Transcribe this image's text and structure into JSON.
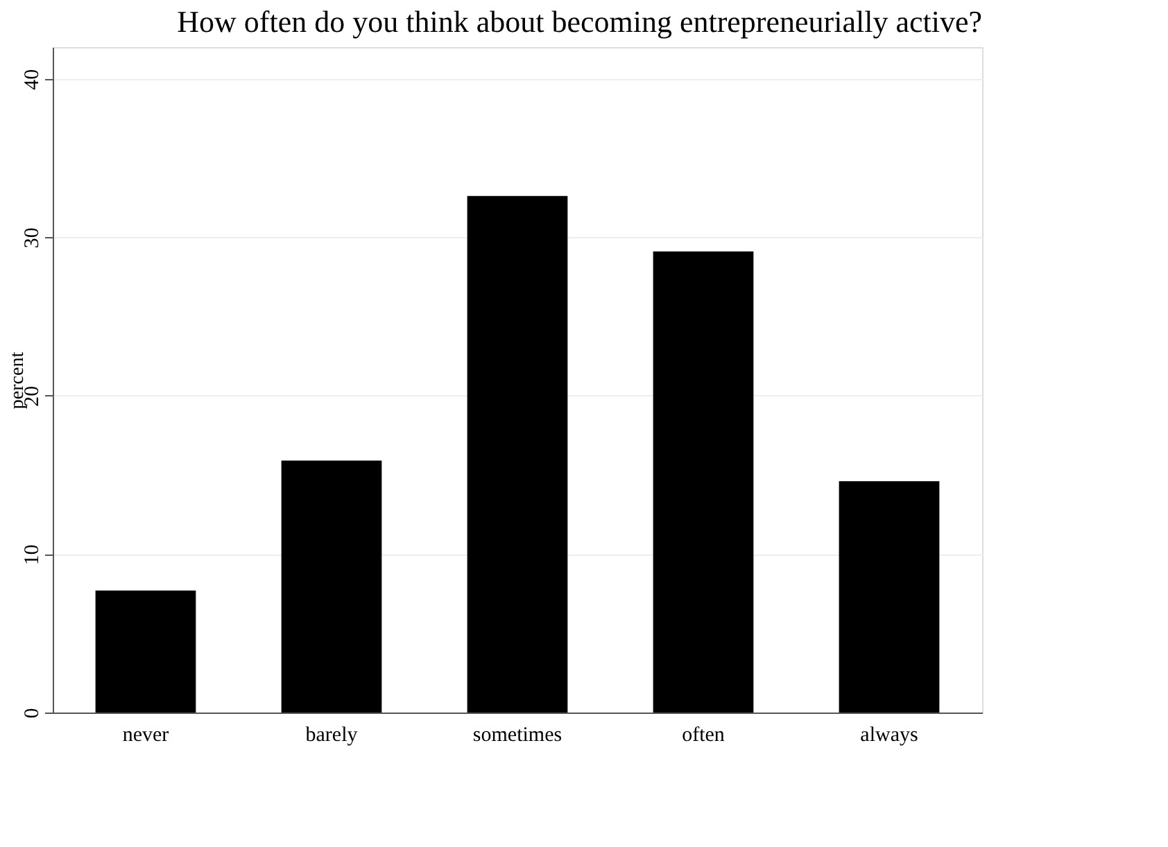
{
  "chart_data": {
    "type": "bar",
    "title": "How often do you think about becoming entrepreneurially active?",
    "ylabel": "percent",
    "categories": [
      "never",
      "barely",
      "sometimes",
      "often",
      "always"
    ],
    "values": [
      7.7,
      15.9,
      32.6,
      29.1,
      14.6
    ],
    "color": "#000000",
    "ylim": [
      0,
      42
    ],
    "yticks": [
      0,
      10,
      20,
      30,
      40
    ],
    "grid": "y"
  }
}
